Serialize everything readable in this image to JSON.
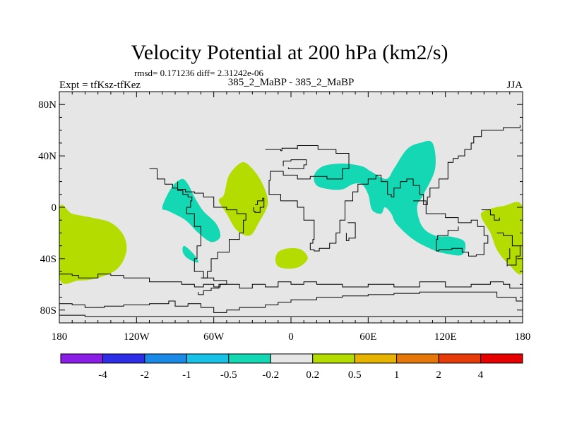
{
  "chart_data": {
    "type": "heatmap",
    "title": "Velocity Potential at 200 hPa (km2/s)",
    "stats": "rmsd= 0.171236 diff= 2.31242e-06",
    "left_label": "Expt = tfKsz-tfKez",
    "center_label": "385_2_MaBP - 385_2_MaBP",
    "right_label": "JJA",
    "x_axis": {
      "range": [
        -180,
        180
      ],
      "ticks": [
        {
          "value": -180,
          "label": "180"
        },
        {
          "value": -120,
          "label": "120W"
        },
        {
          "value": -60,
          "label": "60W"
        },
        {
          "value": 0,
          "label": "0"
        },
        {
          "value": 60,
          "label": "60E"
        },
        {
          "value": 120,
          "label": "120E"
        },
        {
          "value": 180,
          "label": "180"
        }
      ]
    },
    "y_axis": {
      "range": [
        -90,
        90
      ],
      "ticks": [
        {
          "value": 80,
          "label": "80N"
        },
        {
          "value": 40,
          "label": "40N"
        },
        {
          "value": 0,
          "label": "0"
        },
        {
          "value": -40,
          "label": "40S"
        },
        {
          "value": -80,
          "label": "80S"
        }
      ]
    },
    "background_color": "#e6e6e6",
    "colorbar": {
      "colors": [
        "#8a1ee6",
        "#2d2ee6",
        "#1a8ae6",
        "#18c2e6",
        "#14d8b4",
        "#e6e6e6",
        "#b4dc00",
        "#e6b400",
        "#e6780a",
        "#e63c0a",
        "#e60000"
      ],
      "labels": [
        "-4",
        "-2",
        "-1",
        "-0.5",
        "-0.2",
        "0.2",
        "0.5",
        "1",
        "2",
        "4"
      ]
    },
    "regions": [
      {
        "name": "positive-anomaly-west-pacific",
        "level": "0.2 to 0.5",
        "color": "#b4dc00",
        "points": [
          [
            -180,
            -1
          ],
          [
            -170,
            -5
          ],
          [
            -155,
            -8
          ],
          [
            -140,
            -12
          ],
          [
            -130,
            -22
          ],
          [
            -128,
            -35
          ],
          [
            -135,
            -48
          ],
          [
            -150,
            -55
          ],
          [
            -165,
            -57
          ],
          [
            -180,
            -55
          ]
        ]
      },
      {
        "name": "positive-anomaly-central-atlantic",
        "level": "0.2 to 0.5",
        "color": "#b4dc00",
        "points": [
          [
            -52,
            10
          ],
          [
            -48,
            25
          ],
          [
            -38,
            35
          ],
          [
            -30,
            30
          ],
          [
            -22,
            18
          ],
          [
            -18,
            3
          ],
          [
            -25,
            -12
          ],
          [
            -32,
            -22
          ],
          [
            -42,
            -18
          ],
          [
            -50,
            -5
          ],
          [
            -56,
            5
          ]
        ]
      },
      {
        "name": "positive-anomaly-south-atlantic",
        "level": "0.2 to 0.5",
        "color": "#b4dc00",
        "points": [
          [
            -10,
            -35
          ],
          [
            -2,
            -32
          ],
          [
            8,
            -33
          ],
          [
            13,
            -40
          ],
          [
            5,
            -47
          ],
          [
            -8,
            -47
          ],
          [
            -12,
            -42
          ]
        ]
      },
      {
        "name": "positive-anomaly-east-pacific",
        "level": "0.2 to 0.5",
        "color": "#b4dc00",
        "points": [
          [
            150,
            -3
          ],
          [
            165,
            1
          ],
          [
            180,
            0
          ],
          [
            180,
            -50
          ],
          [
            168,
            -43
          ],
          [
            160,
            -33
          ],
          [
            155,
            -20
          ],
          [
            148,
            -8
          ]
        ]
      },
      {
        "name": "negative-anomaly-caribbean",
        "level": "-0.5 to -0.2",
        "color": "#14d8b4",
        "points": [
          [
            -100,
            0
          ],
          [
            -93,
            15
          ],
          [
            -85,
            22
          ],
          [
            -80,
            18
          ],
          [
            -75,
            8
          ],
          [
            -68,
            -3
          ],
          [
            -58,
            -13
          ],
          [
            -55,
            -23
          ],
          [
            -62,
            -27
          ],
          [
            -72,
            -20
          ],
          [
            -82,
            -10
          ],
          [
            -95,
            -3
          ]
        ]
      },
      {
        "name": "negative-anomaly-south-america",
        "level": "-0.5 to -0.2",
        "color": "#14d8b4",
        "points": [
          [
            -83,
            -30
          ],
          [
            -76,
            -36
          ],
          [
            -72,
            -43
          ],
          [
            -80,
            -40
          ],
          [
            -84,
            -35
          ]
        ]
      },
      {
        "name": "negative-anomaly-north-africa",
        "level": "-0.5 to -0.2",
        "color": "#14d8b4",
        "points": [
          [
            18,
            25
          ],
          [
            25,
            32
          ],
          [
            40,
            34
          ],
          [
            55,
            32
          ],
          [
            62,
            28
          ],
          [
            74,
            22
          ],
          [
            80,
            30
          ],
          [
            90,
            45
          ],
          [
            100,
            50
          ],
          [
            110,
            50
          ],
          [
            112,
            30
          ],
          [
            103,
            10
          ],
          [
            98,
            0
          ],
          [
            102,
            -15
          ],
          [
            112,
            -22
          ],
          [
            125,
            -23
          ],
          [
            135,
            -27
          ],
          [
            133,
            -37
          ],
          [
            120,
            -36
          ],
          [
            110,
            -33
          ],
          [
            95,
            -25
          ],
          [
            82,
            -13
          ],
          [
            78,
            -5
          ],
          [
            73,
            0
          ],
          [
            70,
            -5
          ],
          [
            63,
            -2
          ],
          [
            60,
            10
          ],
          [
            55,
            18
          ],
          [
            48,
            18
          ],
          [
            40,
            14
          ],
          [
            30,
            14
          ],
          [
            20,
            17
          ]
        ]
      }
    ],
    "coastlines": [
      [
        [
          -20,
          45
        ],
        [
          -8,
          44
        ],
        [
          -7,
          46
        ],
        [
          5,
          45
        ],
        [
          5,
          48
        ],
        [
          20,
          48
        ],
        [
          21,
          45
        ],
        [
          35,
          45
        ],
        [
          35,
          42
        ],
        [
          45,
          42
        ],
        [
          45,
          30
        ],
        [
          40,
          22
        ],
        [
          28,
          24
        ],
        [
          15,
          22
        ],
        [
          5,
          25
        ],
        [
          -6,
          28
        ],
        [
          -16,
          21
        ],
        [
          -17,
          10
        ],
        [
          -8,
          5
        ],
        [
          5,
          0
        ],
        [
          10,
          -2
        ],
        [
          10,
          -10
        ],
        [
          18,
          -25
        ],
        [
          17,
          -28
        ],
        [
          15,
          -33
        ],
        [
          18,
          -34
        ],
        [
          22,
          -32
        ],
        [
          30,
          -28
        ],
        [
          35,
          -20
        ],
        [
          38,
          -10
        ],
        [
          42,
          5
        ],
        [
          48,
          12
        ],
        [
          52,
          18
        ],
        [
          60,
          22
        ],
        [
          66,
          25
        ],
        [
          70,
          20
        ],
        [
          75,
          10
        ],
        [
          78,
          8
        ],
        [
          80,
          15
        ],
        [
          85,
          20
        ],
        [
          90,
          22
        ],
        [
          95,
          17
        ],
        [
          100,
          10
        ],
        [
          103,
          2
        ],
        [
          106,
          8
        ],
        [
          108,
          15
        ],
        [
          115,
          22
        ],
        [
          122,
          30
        ],
        [
          122,
          35
        ],
        [
          126,
          38
        ],
        [
          130,
          40
        ],
        [
          135,
          45
        ],
        [
          140,
          50
        ],
        [
          142,
          55
        ],
        [
          148,
          60
        ],
        [
          160,
          60
        ],
        [
          165,
          62
        ],
        [
          178,
          64
        ]
      ],
      [
        [
          -110,
          30
        ],
        [
          -104,
          22
        ],
        [
          -98,
          18
        ],
        [
          -92,
          15
        ],
        [
          -88,
          13
        ],
        [
          -84,
          10
        ],
        [
          -80,
          8
        ],
        [
          -77,
          5
        ],
        [
          -78,
          0
        ],
        [
          -81,
          -5
        ],
        [
          -75,
          -15
        ],
        [
          -70,
          -20
        ],
        [
          -70,
          -30
        ],
        [
          -73,
          -40
        ],
        [
          -75,
          -50
        ],
        [
          -68,
          -55
        ],
        [
          -65,
          -50
        ],
        [
          -62,
          -40
        ],
        [
          -57,
          -35
        ],
        [
          -48,
          -25
        ],
        [
          -40,
          -20
        ],
        [
          -37,
          -10
        ],
        [
          -35,
          -5
        ],
        [
          -42,
          -2
        ],
        [
          -50,
          0
        ],
        [
          -60,
          8
        ],
        [
          -68,
          11
        ],
        [
          -75,
          12
        ],
        [
          -82,
          14
        ],
        [
          -88,
          20
        ]
      ],
      [
        [
          -28,
          2
        ],
        [
          -26,
          5
        ],
        [
          -22,
          7
        ],
        [
          -21,
          0
        ],
        [
          -24,
          -4
        ],
        [
          -28,
          -3
        ],
        [
          -29,
          0
        ]
      ],
      [
        [
          -6,
          32
        ],
        [
          -6,
          36
        ],
        [
          0,
          37
        ],
        [
          10,
          37
        ],
        [
          12,
          33
        ],
        [
          10,
          30
        ],
        [
          2,
          30
        ],
        [
          -2,
          31
        ]
      ],
      [
        [
          44,
          -12
        ],
        [
          50,
          -15
        ],
        [
          50,
          -24
        ],
        [
          45,
          -26
        ],
        [
          43,
          -20
        ]
      ],
      [
        [
          95,
          5
        ],
        [
          105,
          -5
        ],
        [
          120,
          -8
        ],
        [
          130,
          -12
        ],
        [
          140,
          -10
        ],
        [
          145,
          -15
        ],
        [
          150,
          -22
        ],
        [
          153,
          -28
        ],
        [
          150,
          -37
        ],
        [
          144,
          -38
        ],
        [
          138,
          -35
        ],
        [
          133,
          -32
        ],
        [
          125,
          -33
        ],
        [
          115,
          -34
        ],
        [
          113,
          -25
        ],
        [
          114,
          -22
        ],
        [
          122,
          -18
        ],
        [
          130,
          -15
        ]
      ],
      [
        [
          -180,
          -52
        ],
        [
          -170,
          -53
        ],
        [
          -165,
          -55
        ],
        [
          -150,
          -52
        ],
        [
          -140,
          -53
        ],
        [
          -130,
          -55
        ],
        [
          -115,
          -55
        ],
        [
          -110,
          -58
        ],
        [
          -100,
          -58
        ],
        [
          -85,
          -60
        ],
        [
          -75,
          -62
        ],
        [
          -68,
          -60
        ],
        [
          -60,
          -62
        ],
        [
          -55,
          -60
        ],
        [
          -40,
          -63
        ],
        [
          -30,
          -60
        ],
        [
          -20,
          -62
        ],
        [
          -10,
          -58
        ],
        [
          0,
          -60
        ],
        [
          10,
          -58
        ],
        [
          20,
          -60
        ],
        [
          40,
          -62
        ],
        [
          60,
          -60
        ],
        [
          80,
          -62
        ],
        [
          100,
          -58
        ],
        [
          120,
          -62
        ],
        [
          140,
          -60
        ],
        [
          155,
          -58
        ],
        [
          165,
          -60
        ],
        [
          170,
          -63
        ],
        [
          180,
          -62
        ]
      ],
      [
        [
          -180,
          -75
        ],
        [
          -170,
          -76
        ],
        [
          -160,
          -78
        ],
        [
          -145,
          -77
        ],
        [
          -130,
          -76
        ],
        [
          -110,
          -75
        ],
        [
          -95,
          -73
        ],
        [
          -90,
          -77
        ],
        [
          -80,
          -75
        ],
        [
          -70,
          -78
        ],
        [
          -60,
          -82
        ],
        [
          -50,
          -80
        ],
        [
          -40,
          -78
        ],
        [
          -20,
          -76
        ],
        [
          -10,
          -74
        ],
        [
          0,
          -72
        ],
        [
          20,
          -70
        ],
        [
          40,
          -69
        ],
        [
          60,
          -68
        ],
        [
          80,
          -67
        ],
        [
          100,
          -66
        ],
        [
          120,
          -66
        ],
        [
          140,
          -66
        ],
        [
          160,
          -70
        ],
        [
          175,
          -73
        ],
        [
          180,
          -75
        ]
      ],
      [
        [
          -180,
          -84
        ],
        [
          -160,
          -85
        ],
        [
          -120,
          -85
        ],
        [
          -80,
          -85
        ],
        [
          -40,
          -85
        ],
        [
          0,
          -85
        ],
        [
          40,
          -85
        ],
        [
          80,
          -85
        ],
        [
          120,
          -85
        ],
        [
          160,
          -85
        ],
        [
          180,
          -84
        ]
      ],
      [
        [
          -70,
          -55
        ],
        [
          -60,
          -57
        ],
        [
          -50,
          -60
        ],
        [
          -56,
          -63
        ],
        [
          -62,
          -65
        ],
        [
          -68,
          -68
        ],
        [
          -72,
          -66
        ]
      ],
      [
        [
          160,
          -20
        ],
        [
          165,
          -22
        ],
        [
          172,
          -30
        ],
        [
          178,
          -38
        ],
        [
          175,
          -45
        ],
        [
          168,
          -46
        ],
        [
          168,
          -40
        ],
        [
          170,
          -32
        ]
      ],
      [
        [
          148,
          -2
        ],
        [
          155,
          -6
        ],
        [
          158,
          -10
        ],
        [
          162,
          -8
        ]
      ]
    ]
  }
}
